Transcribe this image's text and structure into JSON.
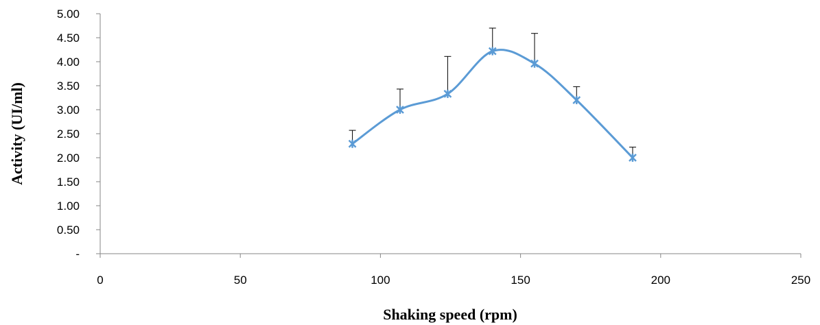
{
  "chart_data": {
    "type": "scatter",
    "title": "",
    "xlabel": "Shaking speed (rpm)",
    "ylabel": "Activity  (UI/ml)",
    "xlim": [
      0,
      250
    ],
    "ylim": [
      0,
      5
    ],
    "x_ticks": [
      {
        "value": 0,
        "label": "0"
      },
      {
        "value": 50,
        "label": "50"
      },
      {
        "value": 100,
        "label": "100"
      },
      {
        "value": 150,
        "label": "150"
      },
      {
        "value": 200,
        "label": "200"
      },
      {
        "value": 250,
        "label": "250"
      }
    ],
    "y_ticks": [
      {
        "value": 0,
        "label": "-"
      },
      {
        "value": 0.5,
        "label": "0.50"
      },
      {
        "value": 1,
        "label": "1.00"
      },
      {
        "value": 1.5,
        "label": "1.50"
      },
      {
        "value": 2,
        "label": "2.00"
      },
      {
        "value": 2.5,
        "label": "2.50"
      },
      {
        "value": 3,
        "label": "3.00"
      },
      {
        "value": 3.5,
        "label": "3.50"
      },
      {
        "value": 4,
        "label": "4.00"
      },
      {
        "value": 4.5,
        "label": "4.50"
      },
      {
        "value": 5,
        "label": "5.00"
      }
    ],
    "grid": false,
    "smooth_line": true,
    "series": [
      {
        "points": [
          {
            "x": 90,
            "y": 2.29,
            "err": 0.28
          },
          {
            "x": 107,
            "y": 3.0,
            "err": 0.43
          },
          {
            "x": 124,
            "y": 3.33,
            "err": 0.78
          },
          {
            "x": 140,
            "y": 4.22,
            "err": 0.48
          },
          {
            "x": 155,
            "y": 3.96,
            "err": 0.63
          },
          {
            "x": 170,
            "y": 3.2,
            "err": 0.28
          },
          {
            "x": 190,
            "y": 2.0,
            "err": 0.22
          }
        ]
      }
    ],
    "colors": {
      "line": "#5b9bd5",
      "marker": "#5b9bd5",
      "error_bar": "#000000",
      "axis": "#868686"
    }
  }
}
